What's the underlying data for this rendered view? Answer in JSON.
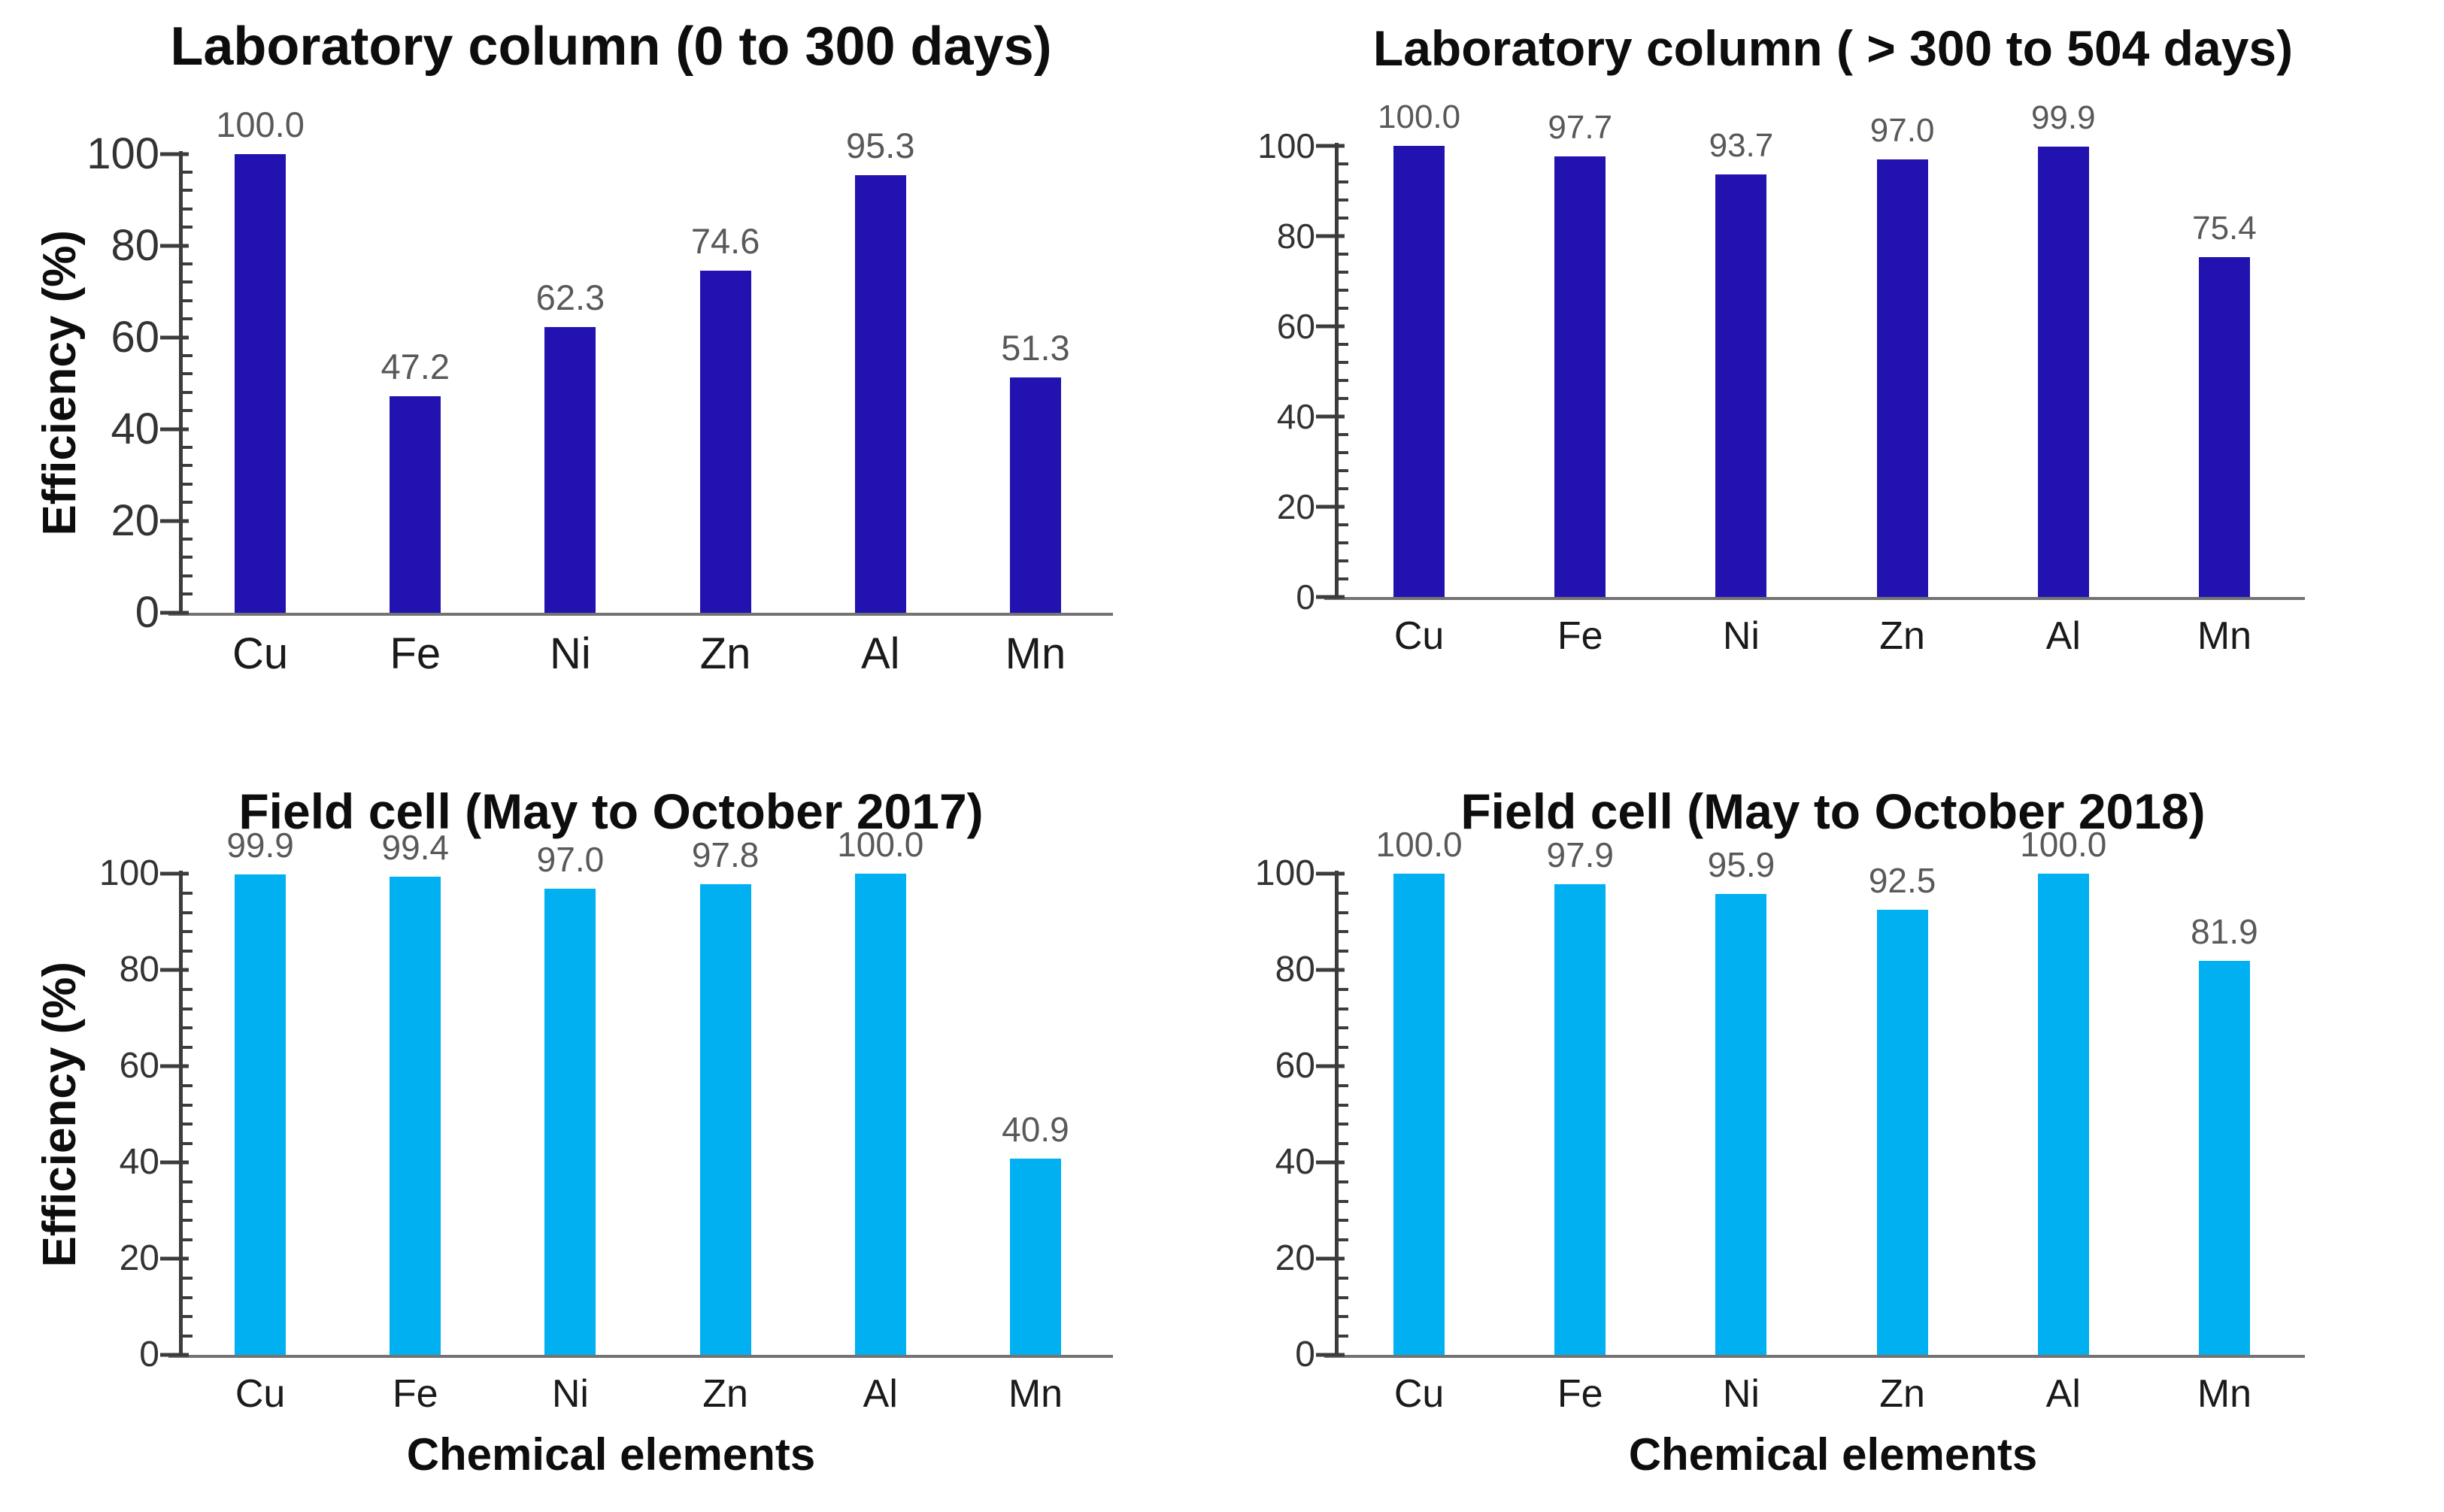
{
  "figure": {
    "background": "#ffffff",
    "navy_bar_color": "#2213b0",
    "cyan_bar_color": "#00b0f0",
    "value_label_color": "#595959",
    "axis_color": "#3c3c3c",
    "baseline_color": "#737373",
    "y_axis_title": "Efficiency (%)",
    "x_axis_title": "Chemical elements"
  },
  "chart_data": [
    {
      "type": "bar",
      "position": "top-left",
      "title": "Laboratory column (0 to 300 days)",
      "categories": [
        "Cu",
        "Fe",
        "Ni",
        "Zn",
        "Al",
        "Mn"
      ],
      "values": [
        100.0,
        47.2,
        62.3,
        74.6,
        95.3,
        51.3
      ],
      "value_labels": [
        "100.0",
        "47.2",
        "62.3",
        "74.6",
        "95.3",
        "51.3"
      ],
      "ylabel": "Efficiency (%)",
      "xlabel": "",
      "ylim": [
        0,
        100
      ],
      "ytick_major": 20,
      "ytick_minor": 4,
      "ytick_labels": [
        "0",
        "20",
        "40",
        "60",
        "80",
        "100"
      ],
      "bar_color": "#2213b0",
      "grid": false,
      "legend": null
    },
    {
      "type": "bar",
      "position": "top-right",
      "title": "Laboratory column ( > 300 to 504 days)",
      "categories": [
        "Cu",
        "Fe",
        "Ni",
        "Zn",
        "Al",
        "Mn"
      ],
      "values": [
        100.0,
        97.7,
        93.7,
        97.0,
        99.9,
        75.4
      ],
      "value_labels": [
        "100.0",
        "97.7",
        "93.7",
        "97.0",
        "99.9",
        "75.4"
      ],
      "ylabel": "",
      "xlabel": "",
      "ylim": [
        0,
        100
      ],
      "ytick_major": 20,
      "ytick_minor": 4,
      "ytick_labels": [
        "0",
        "20",
        "40",
        "60",
        "80",
        "100"
      ],
      "bar_color": "#2213b0",
      "grid": false,
      "legend": null
    },
    {
      "type": "bar",
      "position": "bottom-left",
      "title": "Field cell (May to October 2017)",
      "categories": [
        "Cu",
        "Fe",
        "Ni",
        "Zn",
        "Al",
        "Mn"
      ],
      "values": [
        99.9,
        99.4,
        97.0,
        97.8,
        100.0,
        40.9
      ],
      "value_labels": [
        "99.9",
        "99.4",
        "97.0",
        "97.8",
        "100.0",
        "40.9"
      ],
      "ylabel": "Efficiency (%)",
      "xlabel": "Chemical elements",
      "ylim": [
        0,
        100
      ],
      "ytick_major": 20,
      "ytick_minor": 4,
      "ytick_labels": [
        "0",
        "20",
        "40",
        "60",
        "80",
        "100"
      ],
      "bar_color": "#00b0f0",
      "grid": false,
      "legend": null
    },
    {
      "type": "bar",
      "position": "bottom-right",
      "title": "Field cell (May to October 2018)",
      "categories": [
        "Cu",
        "Fe",
        "Ni",
        "Zn",
        "Al",
        "Mn"
      ],
      "values": [
        100.0,
        97.9,
        95.9,
        92.5,
        100.0,
        81.9
      ],
      "value_labels": [
        "100.0",
        "97.9",
        "95.9",
        "92.5",
        "100.0",
        "81.9"
      ],
      "ylabel": "",
      "xlabel": "Chemical elements",
      "ylim": [
        0,
        100
      ],
      "ytick_major": 20,
      "ytick_minor": 4,
      "ytick_labels": [
        "0",
        "20",
        "40",
        "60",
        "80",
        "100"
      ],
      "bar_color": "#00b0f0",
      "grid": false,
      "legend": null
    }
  ]
}
